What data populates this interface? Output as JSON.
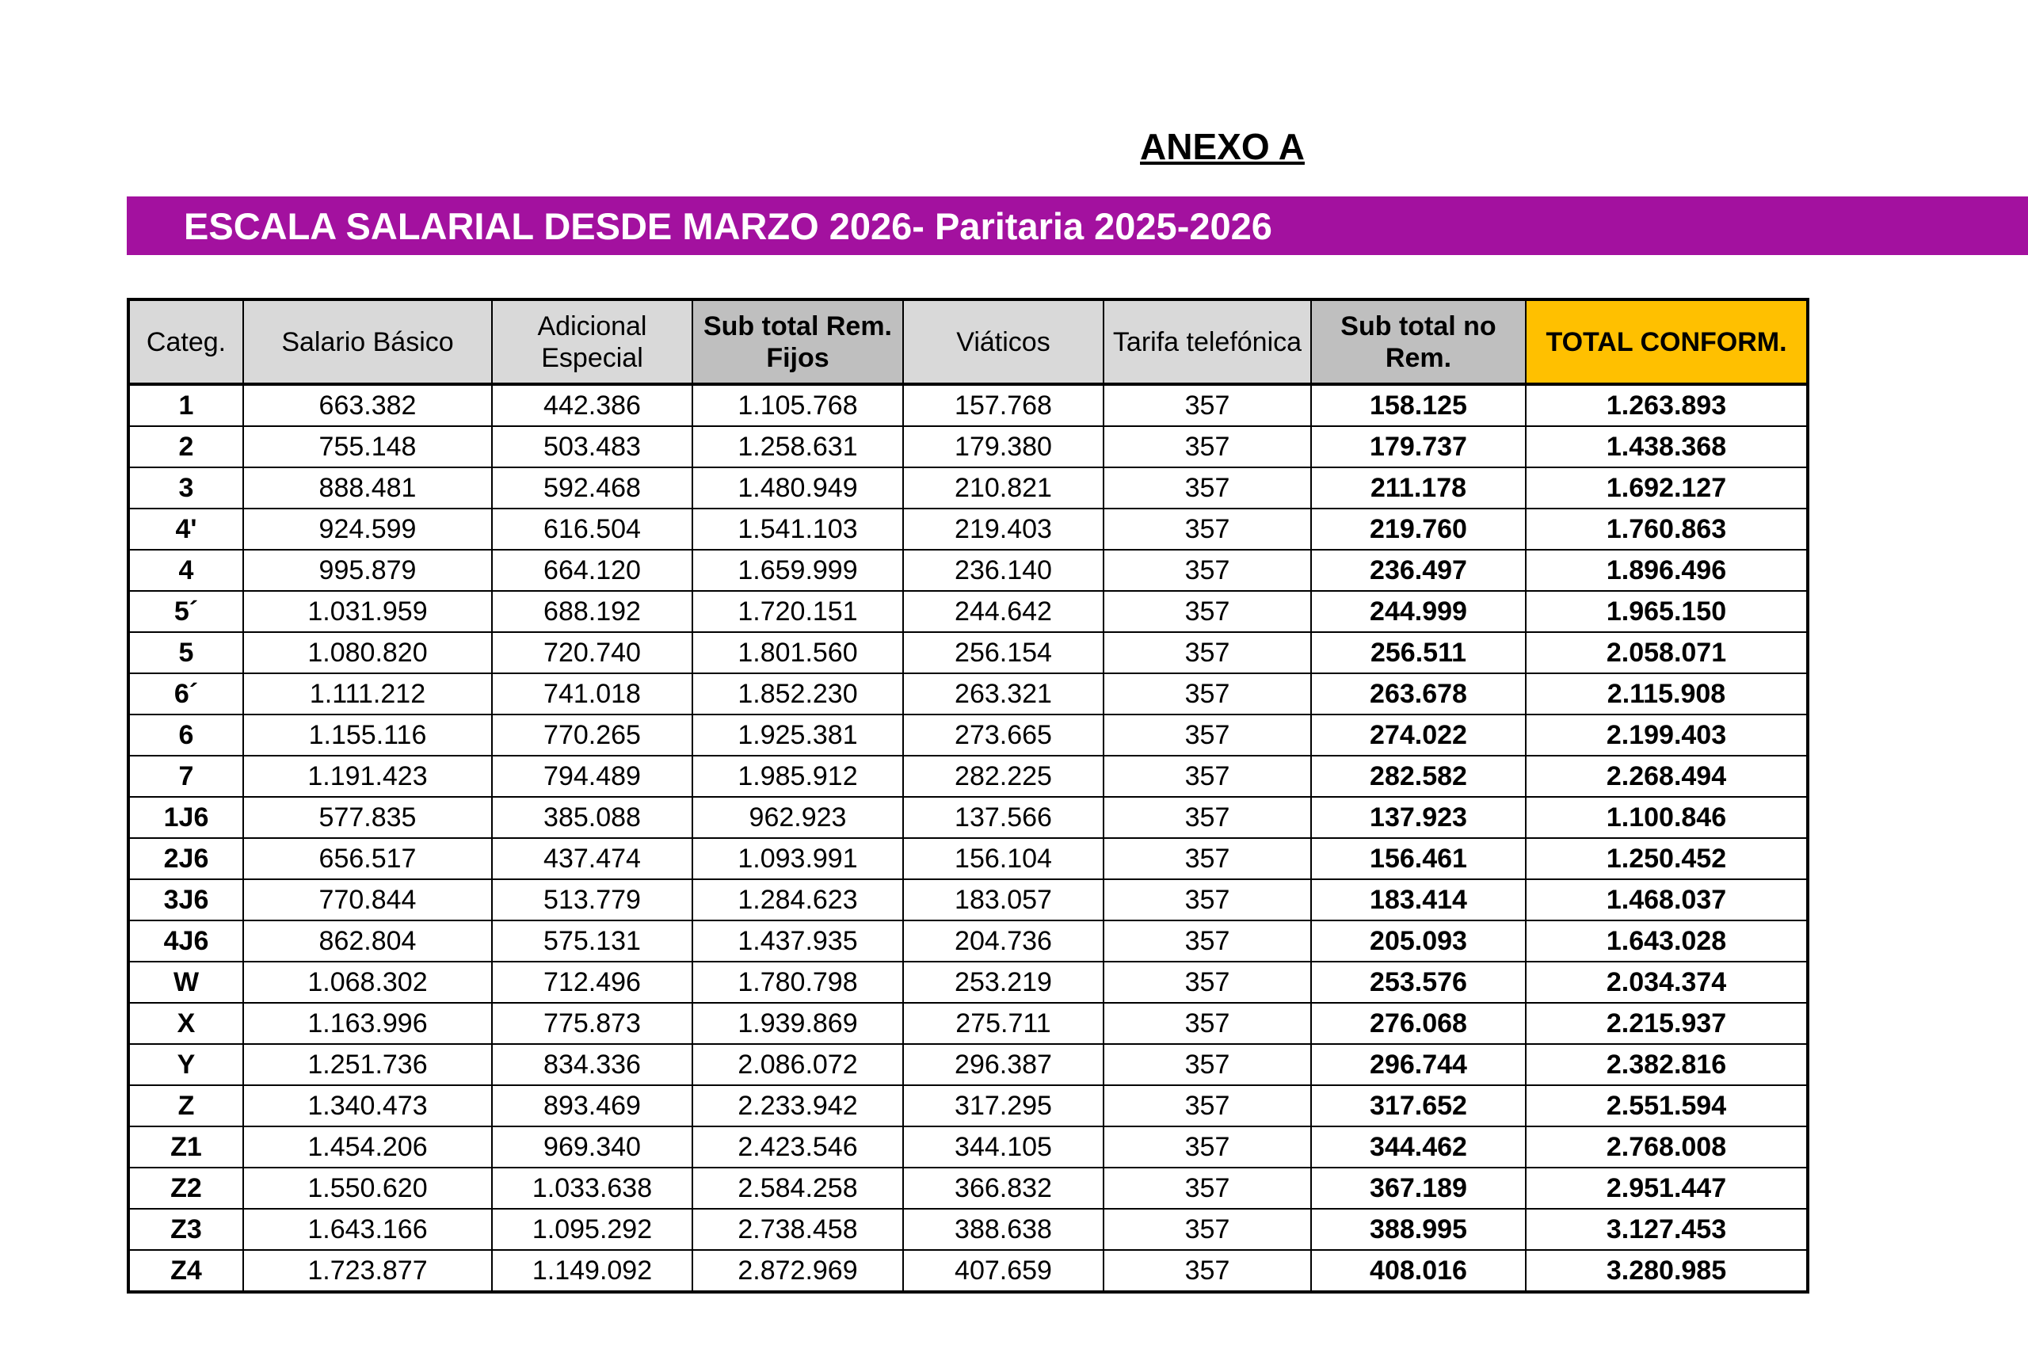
{
  "header": {
    "title": "ANEXO A",
    "banner": "ESCALA SALARIAL DESDE MARZO 2026- Paritaria 2025-2026"
  },
  "table": {
    "headers": [
      "Categ.",
      "Salario Básico",
      "Adicional Especial",
      "Sub total Rem. Fijos",
      "Viáticos",
      "Tarifa telefónica",
      "Sub total no Rem.",
      "TOTAL CONFORM."
    ],
    "rows": [
      [
        "1",
        "663.382",
        "442.386",
        "1.105.768",
        "157.768",
        "357",
        "158.125",
        "1.263.893"
      ],
      [
        "2",
        "755.148",
        "503.483",
        "1.258.631",
        "179.380",
        "357",
        "179.737",
        "1.438.368"
      ],
      [
        "3",
        "888.481",
        "592.468",
        "1.480.949",
        "210.821",
        "357",
        "211.178",
        "1.692.127"
      ],
      [
        "4'",
        "924.599",
        "616.504",
        "1.541.103",
        "219.403",
        "357",
        "219.760",
        "1.760.863"
      ],
      [
        "4",
        "995.879",
        "664.120",
        "1.659.999",
        "236.140",
        "357",
        "236.497",
        "1.896.496"
      ],
      [
        "5´",
        "1.031.959",
        "688.192",
        "1.720.151",
        "244.642",
        "357",
        "244.999",
        "1.965.150"
      ],
      [
        "5",
        "1.080.820",
        "720.740",
        "1.801.560",
        "256.154",
        "357",
        "256.511",
        "2.058.071"
      ],
      [
        "6´",
        "1.111.212",
        "741.018",
        "1.852.230",
        "263.321",
        "357",
        "263.678",
        "2.115.908"
      ],
      [
        "6",
        "1.155.116",
        "770.265",
        "1.925.381",
        "273.665",
        "357",
        "274.022",
        "2.199.403"
      ],
      [
        "7",
        "1.191.423",
        "794.489",
        "1.985.912",
        "282.225",
        "357",
        "282.582",
        "2.268.494"
      ],
      [
        "1J6",
        "577.835",
        "385.088",
        "962.923",
        "137.566",
        "357",
        "137.923",
        "1.100.846"
      ],
      [
        "2J6",
        "656.517",
        "437.474",
        "1.093.991",
        "156.104",
        "357",
        "156.461",
        "1.250.452"
      ],
      [
        "3J6",
        "770.844",
        "513.779",
        "1.284.623",
        "183.057",
        "357",
        "183.414",
        "1.468.037"
      ],
      [
        "4J6",
        "862.804",
        "575.131",
        "1.437.935",
        "204.736",
        "357",
        "205.093",
        "1.643.028"
      ],
      [
        "W",
        "1.068.302",
        "712.496",
        "1.780.798",
        "253.219",
        "357",
        "253.576",
        "2.034.374"
      ],
      [
        "X",
        "1.163.996",
        "775.873",
        "1.939.869",
        "275.711",
        "357",
        "276.068",
        "2.215.937"
      ],
      [
        "Y",
        "1.251.736",
        "834.336",
        "2.086.072",
        "296.387",
        "357",
        "296.744",
        "2.382.816"
      ],
      [
        "Z",
        "1.340.473",
        "893.469",
        "2.233.942",
        "317.295",
        "357",
        "317.652",
        "2.551.594"
      ],
      [
        "Z1",
        "1.454.206",
        "969.340",
        "2.423.546",
        "344.105",
        "357",
        "344.462",
        "2.768.008"
      ],
      [
        "Z2",
        "1.550.620",
        "1.033.638",
        "2.584.258",
        "366.832",
        "357",
        "367.189",
        "2.951.447"
      ],
      [
        "Z3",
        "1.643.166",
        "1.095.292",
        "2.738.458",
        "388.638",
        "357",
        "388.995",
        "3.127.453"
      ],
      [
        "Z4",
        "1.723.877",
        "1.149.092",
        "2.872.969",
        "407.659",
        "357",
        "408.016",
        "3.280.985"
      ]
    ]
  }
}
